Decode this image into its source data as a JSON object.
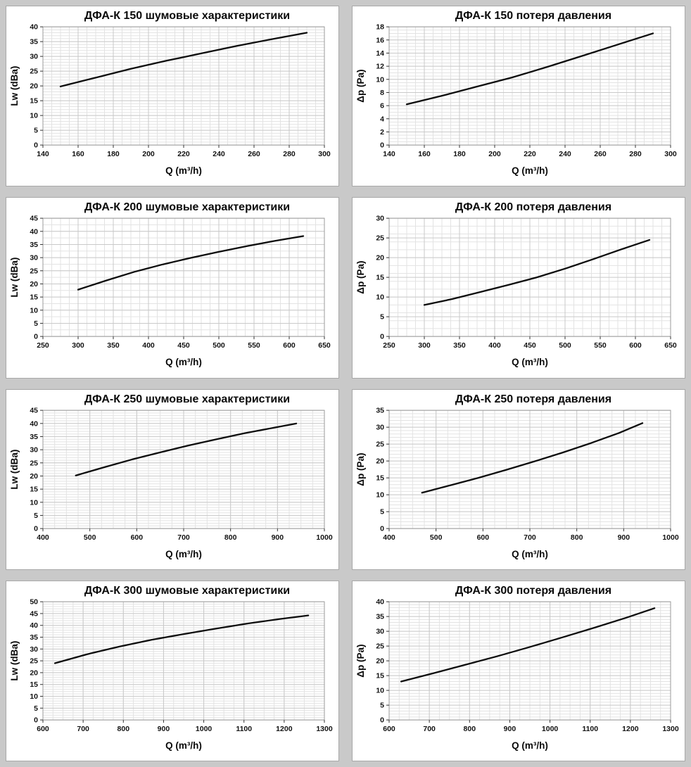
{
  "page": {
    "background_color": "#c9c9c9",
    "panel_border_color": "#a8a8a8",
    "grid_minor_color": "#e3e3e3",
    "grid_major_color": "#c9c9c9",
    "frame_color": "#9b9b9b",
    "curve_color": "#0d0d0d",
    "text_color": "#0a0a0a"
  },
  "chart_data": [
    {
      "type": "line",
      "title": "ДФА-К 150 шумовые характеристики",
      "xlabel": "Q (m³/h)",
      "ylabel": "Lw (dBa)",
      "xlim": [
        140,
        300
      ],
      "x_major": 20,
      "x_minor": 5,
      "ylim": [
        0,
        40
      ],
      "y_major": 5,
      "y_minor": 1,
      "grid": "on",
      "legend": "none",
      "x": [
        150,
        170,
        190,
        210,
        230,
        250,
        270,
        290
      ],
      "y": [
        19.8,
        22.8,
        25.8,
        28.5,
        31.0,
        33.5,
        35.8,
        38.0
      ]
    },
    {
      "type": "line",
      "title": "ДФА-К 150 потеря давления",
      "xlabel": "Q (m³/h)",
      "ylabel": "Δp (Pa)",
      "xlim": [
        140,
        300
      ],
      "x_major": 20,
      "x_minor": 5,
      "ylim": [
        0,
        18
      ],
      "y_major": 2,
      "y_minor": 0.5,
      "grid": "on",
      "legend": "none",
      "x": [
        150,
        170,
        190,
        210,
        230,
        250,
        270,
        290
      ],
      "y": [
        6.2,
        7.5,
        8.9,
        10.3,
        11.9,
        13.6,
        15.3,
        17.0
      ]
    },
    {
      "type": "line",
      "title": "ДФА-К 200 шумовые характеристики",
      "xlabel": "Q (m³/h)",
      "ylabel": "Lw (dBa)",
      "xlim": [
        250,
        650
      ],
      "x_major": 50,
      "x_minor": 12.5,
      "ylim": [
        0,
        45
      ],
      "y_major": 5,
      "y_minor": 2.5,
      "grid": "on",
      "legend": "none",
      "x": [
        300,
        340,
        380,
        420,
        460,
        500,
        540,
        580,
        620
      ],
      "y": [
        17.8,
        21.3,
        24.6,
        27.4,
        29.9,
        32.2,
        34.4,
        36.4,
        38.2
      ]
    },
    {
      "type": "line",
      "title": "ДФА-К 200 потеря давления",
      "xlabel": "Q (m³/h)",
      "ylabel": "Δp (Pa)",
      "xlim": [
        250,
        650
      ],
      "x_major": 50,
      "x_minor": 12.5,
      "ylim": [
        0,
        30
      ],
      "y_major": 5,
      "y_minor": 2,
      "grid": "on",
      "legend": "none",
      "x": [
        300,
        340,
        380,
        420,
        460,
        500,
        540,
        580,
        620
      ],
      "y": [
        8.0,
        9.5,
        11.3,
        13.1,
        15.0,
        17.2,
        19.6,
        22.1,
        24.5
      ]
    },
    {
      "type": "line",
      "title": "ДФА-К 250 шумовые характеристики",
      "xlabel": "Q (m³/h)",
      "ylabel": "Lw (dBa)",
      "xlim": [
        400,
        1000
      ],
      "x_major": 100,
      "x_minor": 25,
      "ylim": [
        0,
        45
      ],
      "y_major": 5,
      "y_minor": 1,
      "grid": "on",
      "legend": "none",
      "x": [
        470,
        530,
        590,
        650,
        710,
        770,
        830,
        890,
        940
      ],
      "y": [
        20.2,
        23.3,
        26.3,
        29.0,
        31.6,
        34.0,
        36.3,
        38.3,
        40.0
      ]
    },
    {
      "type": "line",
      "title": "ДФА-К 250 потеря давления",
      "xlabel": "Q (m³/h)",
      "ylabel": "Δp (Pa)",
      "xlim": [
        400,
        1000
      ],
      "x_major": 100,
      "x_minor": 25,
      "ylim": [
        0,
        35
      ],
      "y_major": 5,
      "y_minor": 1,
      "grid": "on",
      "legend": "none",
      "x": [
        470,
        530,
        590,
        650,
        710,
        770,
        830,
        890,
        940
      ],
      "y": [
        10.6,
        12.8,
        15.0,
        17.4,
        19.9,
        22.5,
        25.3,
        28.3,
        31.2
      ]
    },
    {
      "type": "line",
      "title": "ДФА-К 300 шумовые характеристики",
      "xlabel": "Q (m³/h)",
      "ylabel": "Lw (dBa)",
      "xlim": [
        600,
        1300
      ],
      "x_major": 100,
      "x_minor": 25,
      "ylim": [
        0,
        50
      ],
      "y_major": 5,
      "y_minor": 1,
      "grid": "on",
      "legend": "none",
      "x": [
        630,
        710,
        790,
        870,
        950,
        1030,
        1110,
        1190,
        1260
      ],
      "y": [
        24.0,
        27.8,
        31.0,
        33.9,
        36.3,
        38.6,
        40.8,
        42.7,
        44.2
      ]
    },
    {
      "type": "line",
      "title": "ДФА-К 300 потеря давления",
      "xlabel": "Q (m³/h)",
      "ylabel": "Δp (Pa)",
      "xlim": [
        600,
        1300
      ],
      "x_major": 100,
      "x_minor": 25,
      "ylim": [
        0,
        40
      ],
      "y_major": 5,
      "y_minor": 1,
      "grid": "on",
      "legend": "none",
      "x": [
        630,
        710,
        790,
        870,
        950,
        1030,
        1110,
        1190,
        1260
      ],
      "y": [
        13.0,
        15.8,
        18.7,
        21.6,
        24.7,
        27.9,
        31.2,
        34.6,
        37.8
      ]
    }
  ]
}
